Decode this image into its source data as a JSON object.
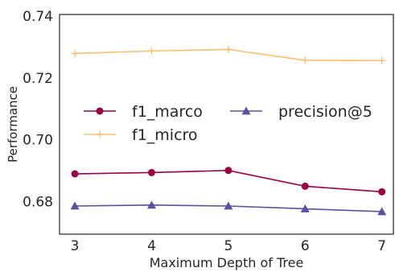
{
  "chart_data": {
    "type": "line",
    "title": "",
    "xlabel": "Maximum Depth of Tree",
    "ylabel": "Performance",
    "x": [
      3,
      4,
      5,
      6,
      7
    ],
    "xticks": [
      "3",
      "4",
      "5",
      "6",
      "7"
    ],
    "yticks": [
      "0.68",
      "0.70",
      "0.72",
      "0.74"
    ],
    "xlim": [
      2.8,
      7.15
    ],
    "ylim": [
      0.6695,
      0.7405
    ],
    "grid": false,
    "legend": "center",
    "series": [
      {
        "name": "f1_marco",
        "color": "#9e0142",
        "marker": "circle",
        "values": [
          0.689,
          0.6894,
          0.6901,
          0.685,
          0.6832
        ]
      },
      {
        "name": "f1_micro",
        "color": "#fdbf6f",
        "marker": "plus",
        "values": [
          0.7279,
          0.7287,
          0.7292,
          0.7257,
          0.7256
        ]
      },
      {
        "name": "precision@5",
        "color": "#5e4fa2",
        "marker": "triangle",
        "values": [
          0.6786,
          0.6789,
          0.6786,
          0.6777,
          0.6768
        ]
      }
    ]
  }
}
